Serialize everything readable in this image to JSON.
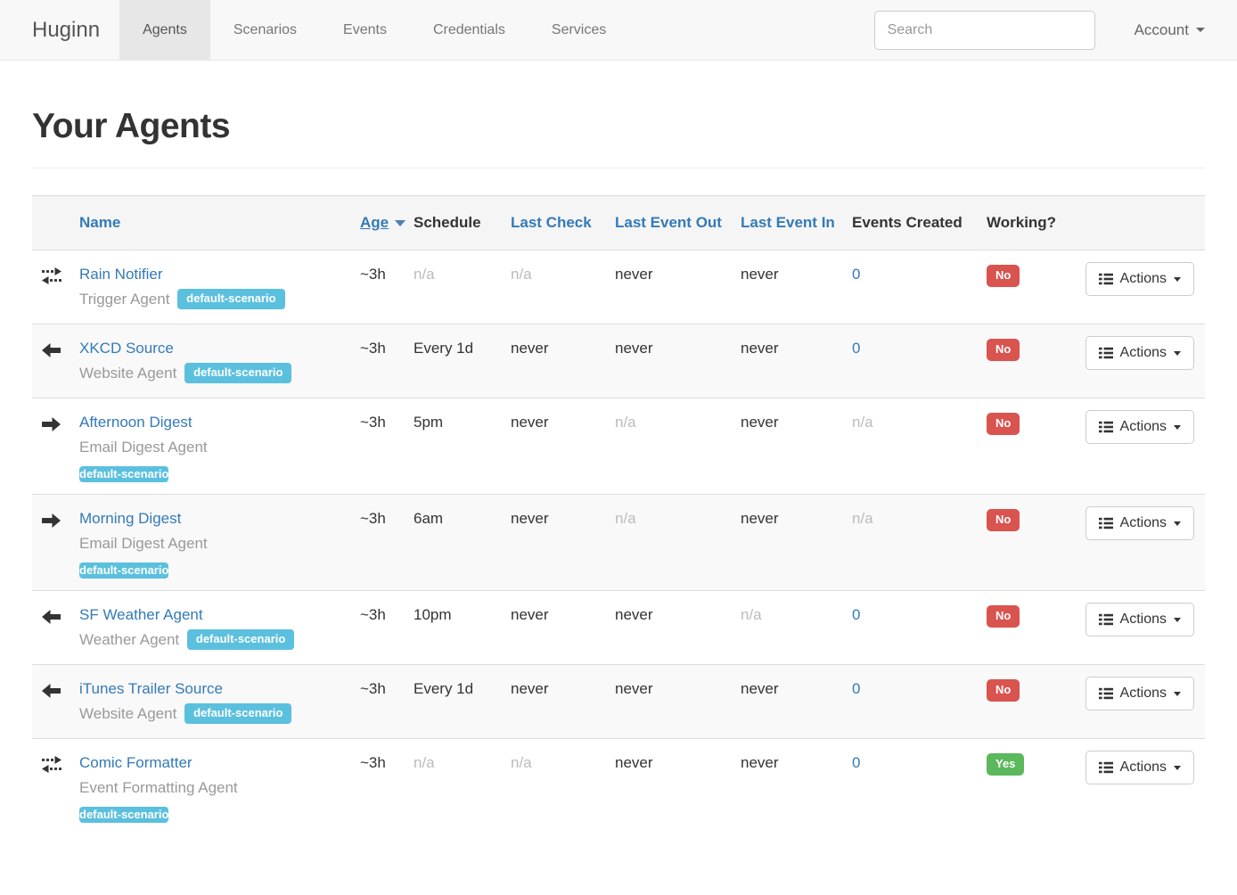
{
  "navbar": {
    "brand": "Huginn",
    "items": [
      {
        "label": "Agents",
        "active": true
      },
      {
        "label": "Scenarios",
        "active": false
      },
      {
        "label": "Events",
        "active": false
      },
      {
        "label": "Credentials",
        "active": false
      },
      {
        "label": "Services",
        "active": false
      }
    ],
    "search_placeholder": "Search",
    "account_label": "Account"
  },
  "page": {
    "title": "Your Agents"
  },
  "table": {
    "headers": {
      "name": "Name",
      "age": "Age",
      "schedule": "Schedule",
      "last_check": "Last Check",
      "last_event_out": "Last Event Out",
      "last_event_in": "Last Event In",
      "events_created": "Events Created",
      "working": "Working?"
    },
    "sorted_by": "age",
    "actions_label": "Actions",
    "rows": [
      {
        "icon": "exchange",
        "name": "Rain Notifier",
        "type": "Trigger Agent",
        "badge": "default-scenario",
        "badge_inline": true,
        "age": {
          "text": "~3h"
        },
        "schedule": {
          "text": "n/a",
          "muted": true
        },
        "last_check": {
          "text": "n/a",
          "muted": true
        },
        "last_event_out": {
          "text": "never"
        },
        "last_event_in": {
          "text": "never"
        },
        "events_created": {
          "text": "0",
          "link": true
        },
        "working": {
          "text": "No",
          "status": "no"
        }
      },
      {
        "icon": "arrow-left",
        "name": "XKCD Source",
        "type": "Website Agent",
        "badge": "default-scenario",
        "badge_inline": true,
        "age": {
          "text": "~3h"
        },
        "schedule": {
          "text": "Every 1d"
        },
        "last_check": {
          "text": "never"
        },
        "last_event_out": {
          "text": "never"
        },
        "last_event_in": {
          "text": "never"
        },
        "events_created": {
          "text": "0",
          "link": true
        },
        "working": {
          "text": "No",
          "status": "no"
        }
      },
      {
        "icon": "arrow-right",
        "name": "Afternoon Digest",
        "type": "Email Digest Agent",
        "badge": "default-scenario",
        "badge_inline": false,
        "age": {
          "text": "~3h"
        },
        "schedule": {
          "text": "5pm"
        },
        "last_check": {
          "text": "never"
        },
        "last_event_out": {
          "text": "n/a",
          "muted": true
        },
        "last_event_in": {
          "text": "never"
        },
        "events_created": {
          "text": "n/a",
          "muted": true
        },
        "working": {
          "text": "No",
          "status": "no"
        }
      },
      {
        "icon": "arrow-right",
        "name": "Morning Digest",
        "type": "Email Digest Agent",
        "badge": "default-scenario",
        "badge_inline": false,
        "age": {
          "text": "~3h"
        },
        "schedule": {
          "text": "6am"
        },
        "last_check": {
          "text": "never"
        },
        "last_event_out": {
          "text": "n/a",
          "muted": true
        },
        "last_event_in": {
          "text": "never"
        },
        "events_created": {
          "text": "n/a",
          "muted": true
        },
        "working": {
          "text": "No",
          "status": "no"
        }
      },
      {
        "icon": "arrow-left",
        "name": "SF Weather Agent",
        "type": "Weather Agent",
        "badge": "default-scenario",
        "badge_inline": true,
        "age": {
          "text": "~3h"
        },
        "schedule": {
          "text": "10pm"
        },
        "last_check": {
          "text": "never"
        },
        "last_event_out": {
          "text": "never"
        },
        "last_event_in": {
          "text": "n/a",
          "muted": true
        },
        "events_created": {
          "text": "0",
          "link": true
        },
        "working": {
          "text": "No",
          "status": "no"
        }
      },
      {
        "icon": "arrow-left",
        "name": "iTunes Trailer Source",
        "type": "Website Agent",
        "badge": "default-scenario",
        "badge_inline": true,
        "age": {
          "text": "~3h"
        },
        "schedule": {
          "text": "Every 1d"
        },
        "last_check": {
          "text": "never"
        },
        "last_event_out": {
          "text": "never"
        },
        "last_event_in": {
          "text": "never"
        },
        "events_created": {
          "text": "0",
          "link": true
        },
        "working": {
          "text": "No",
          "status": "no"
        }
      },
      {
        "icon": "exchange",
        "name": "Comic Formatter",
        "type": "Event Formatting Agent",
        "badge": "default-scenario",
        "badge_inline": false,
        "age": {
          "text": "~3h"
        },
        "schedule": {
          "text": "n/a",
          "muted": true
        },
        "last_check": {
          "text": "n/a",
          "muted": true
        },
        "last_event_out": {
          "text": "never"
        },
        "last_event_in": {
          "text": "never"
        },
        "events_created": {
          "text": "0",
          "link": true
        },
        "working": {
          "text": "Yes",
          "status": "yes"
        }
      }
    ]
  },
  "colors": {
    "link_blue": "#337ab7",
    "badge_info": "#5bc0de",
    "label_no": "#d9534f",
    "label_yes": "#5cb85c",
    "navbar_bg": "#f8f8f8",
    "active_tab_bg": "#e7e7e7"
  }
}
